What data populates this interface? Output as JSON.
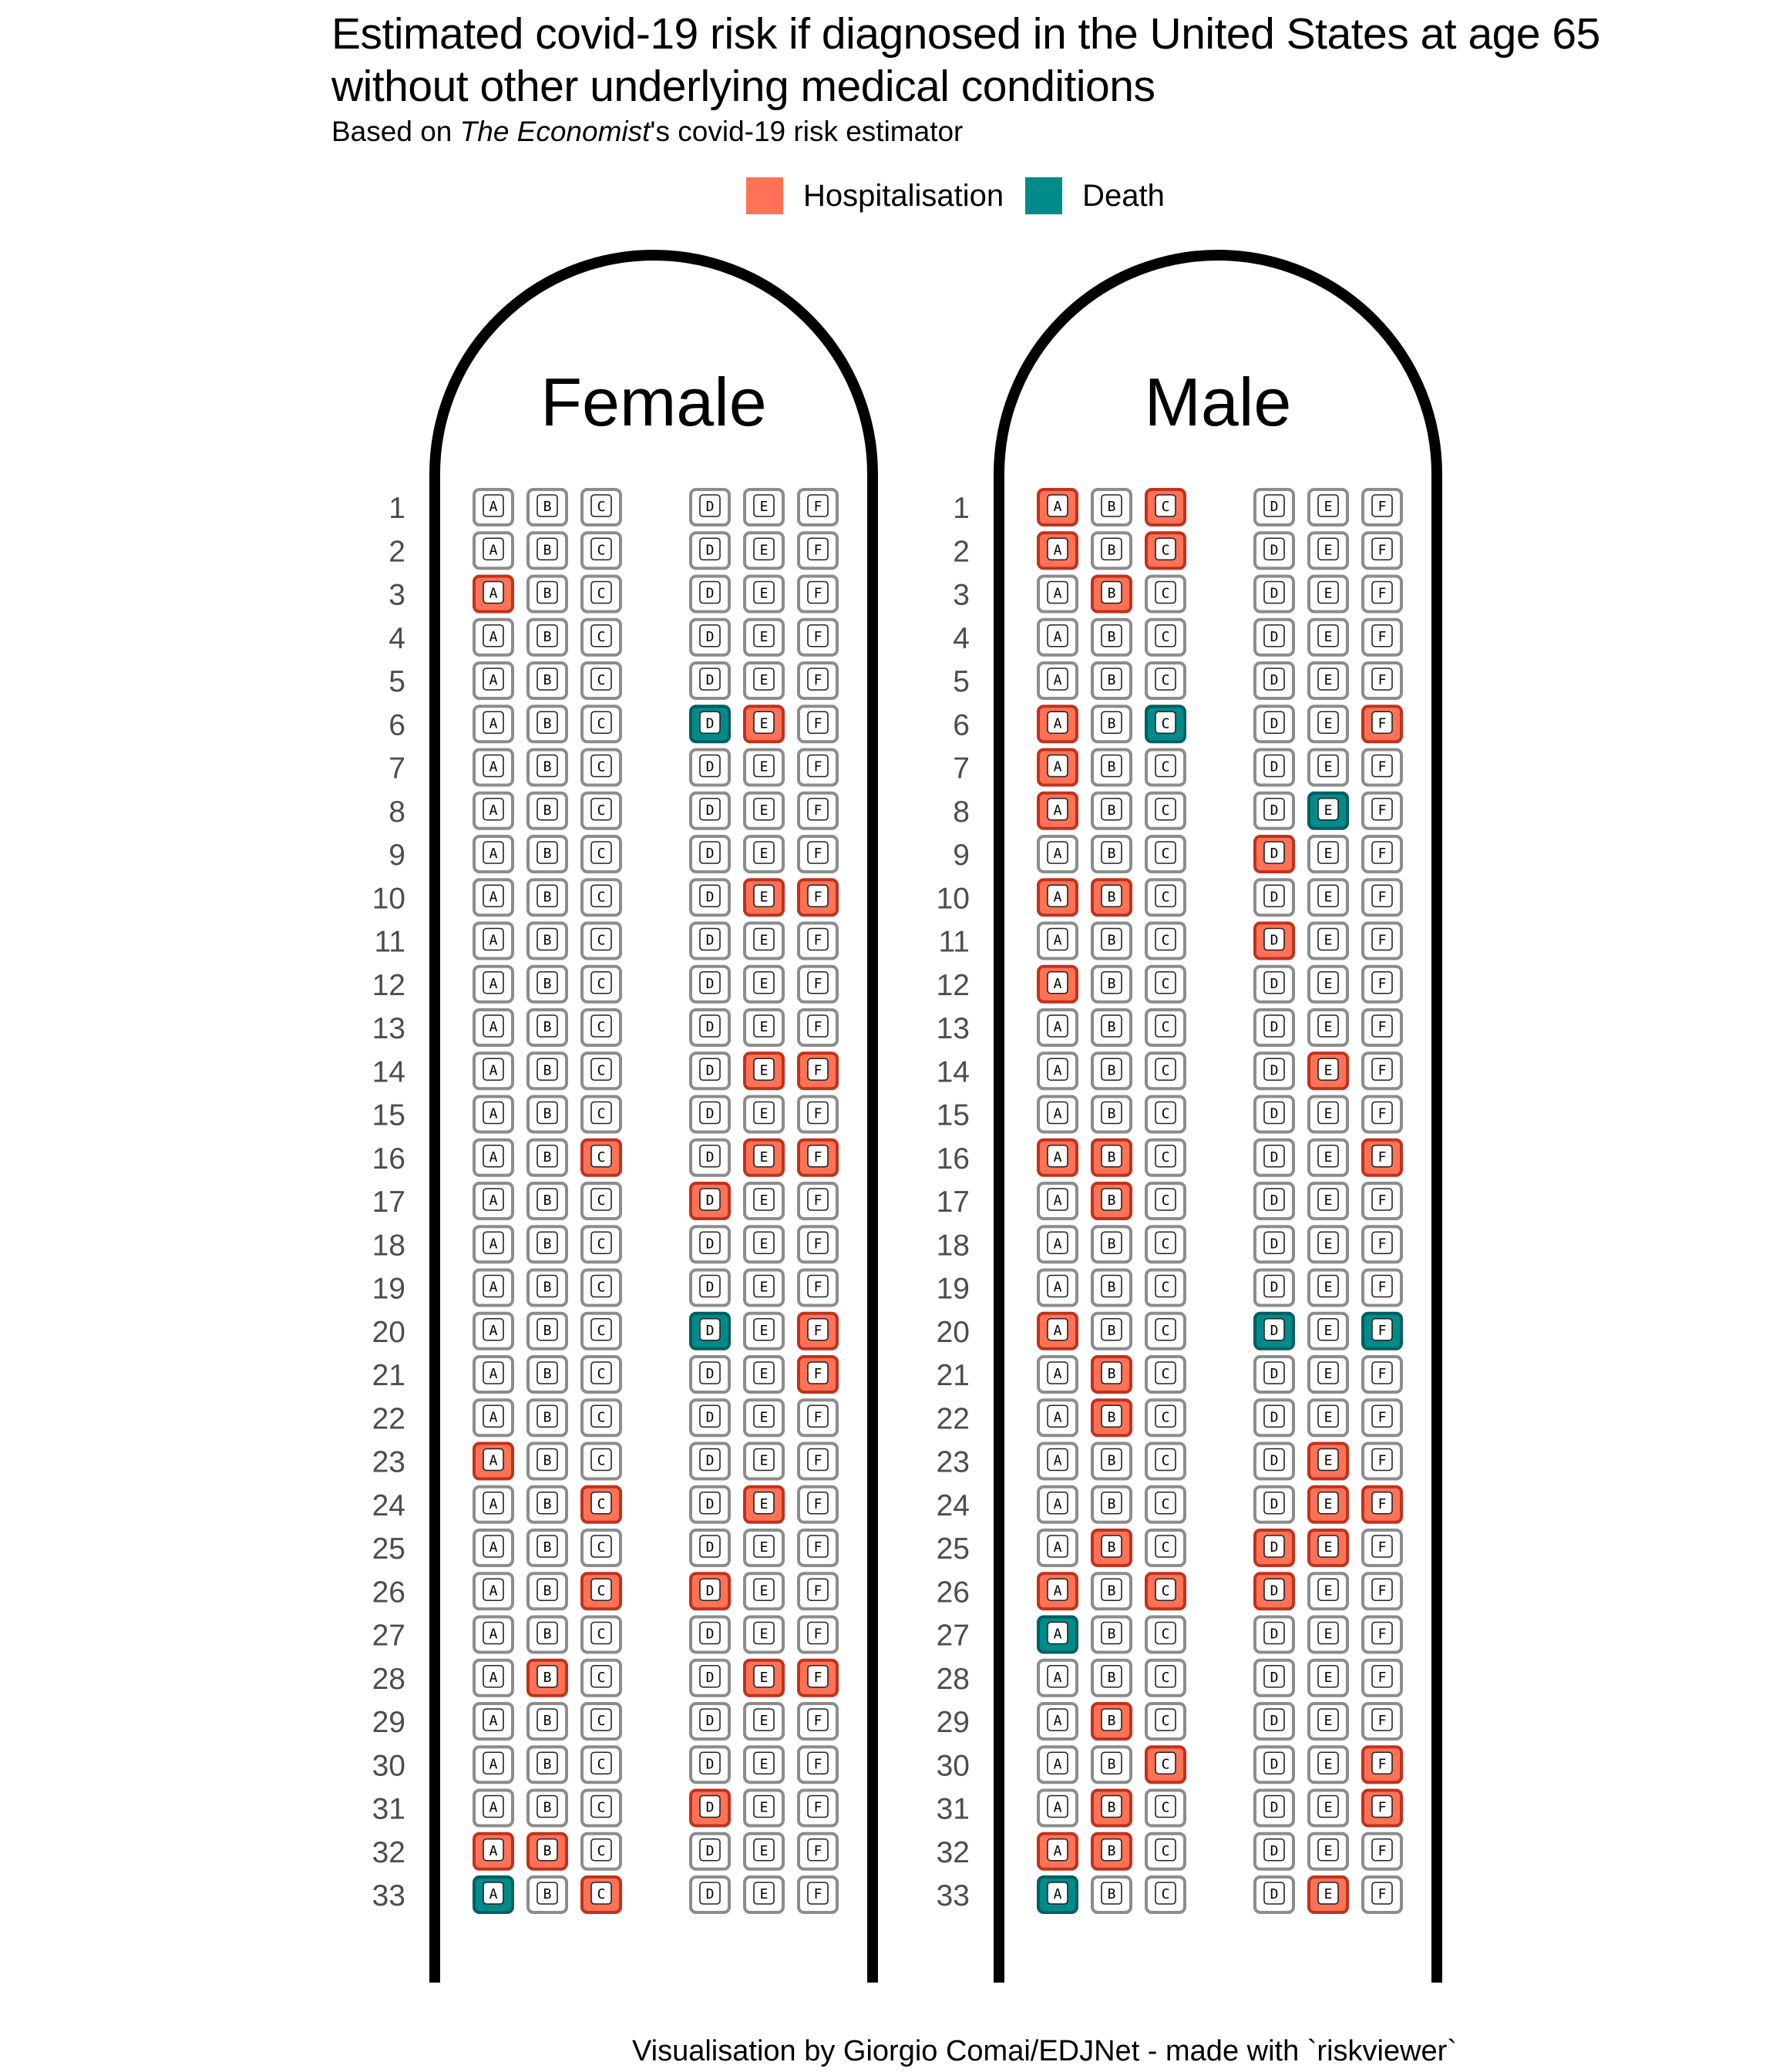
{
  "title_line1": "Estimated covid-19 risk if diagnosed in the United States at age 65",
  "title_line2": "without other underlying medical conditions",
  "subtitle_pre": "Based on ",
  "subtitle_em": "The Economist",
  "subtitle_post": "'s covid-19 risk estimator",
  "caption": "Visualisation by Giorgio Comai/EDJNet - made with `riskviewer`",
  "colors": {
    "hospitalisation_fill": "#ff7256",
    "hospitalisation_border": "#c0321e",
    "death_fill": "#008b8b",
    "death_border": "#005f5f",
    "none_border": "#8c8c8c",
    "fuselage": "#000000"
  },
  "legend": [
    {
      "label": "Hospitalisation",
      "status": "H"
    },
    {
      "label": "Death",
      "status": "D"
    }
  ],
  "chart_data": {
    "type": "table",
    "seat_letters": [
      "A",
      "B",
      "C",
      "D",
      "E",
      "F"
    ],
    "row_count": 33,
    "legend_placement": "top",
    "panels": [
      {
        "name": "Female",
        "hospitalisation": [
          "3A",
          "6E",
          "10E",
          "10F",
          "14E",
          "14F",
          "16C",
          "16E",
          "16F",
          "17D",
          "20F",
          "21F",
          "23A",
          "24C",
          "24E",
          "26C",
          "26D",
          "28B",
          "28E",
          "28F",
          "31D",
          "32A",
          "32B",
          "33C"
        ],
        "death": [
          "6D",
          "20D",
          "33A"
        ]
      },
      {
        "name": "Male",
        "hospitalisation": [
          "1A",
          "1C",
          "2A",
          "2C",
          "3B",
          "6A",
          "6F",
          "7A",
          "8A",
          "9D",
          "10A",
          "10B",
          "11D",
          "12A",
          "14E",
          "16A",
          "16B",
          "16F",
          "17B",
          "20A",
          "21B",
          "22B",
          "23E",
          "24E",
          "24F",
          "25B",
          "25D",
          "25E",
          "26A",
          "26C",
          "26D",
          "29B",
          "30C",
          "30F",
          "31B",
          "31F",
          "32A",
          "32B",
          "33E"
        ],
        "death": [
          "6C",
          "8E",
          "20D",
          "20F",
          "27A",
          "33A"
        ]
      }
    ]
  }
}
